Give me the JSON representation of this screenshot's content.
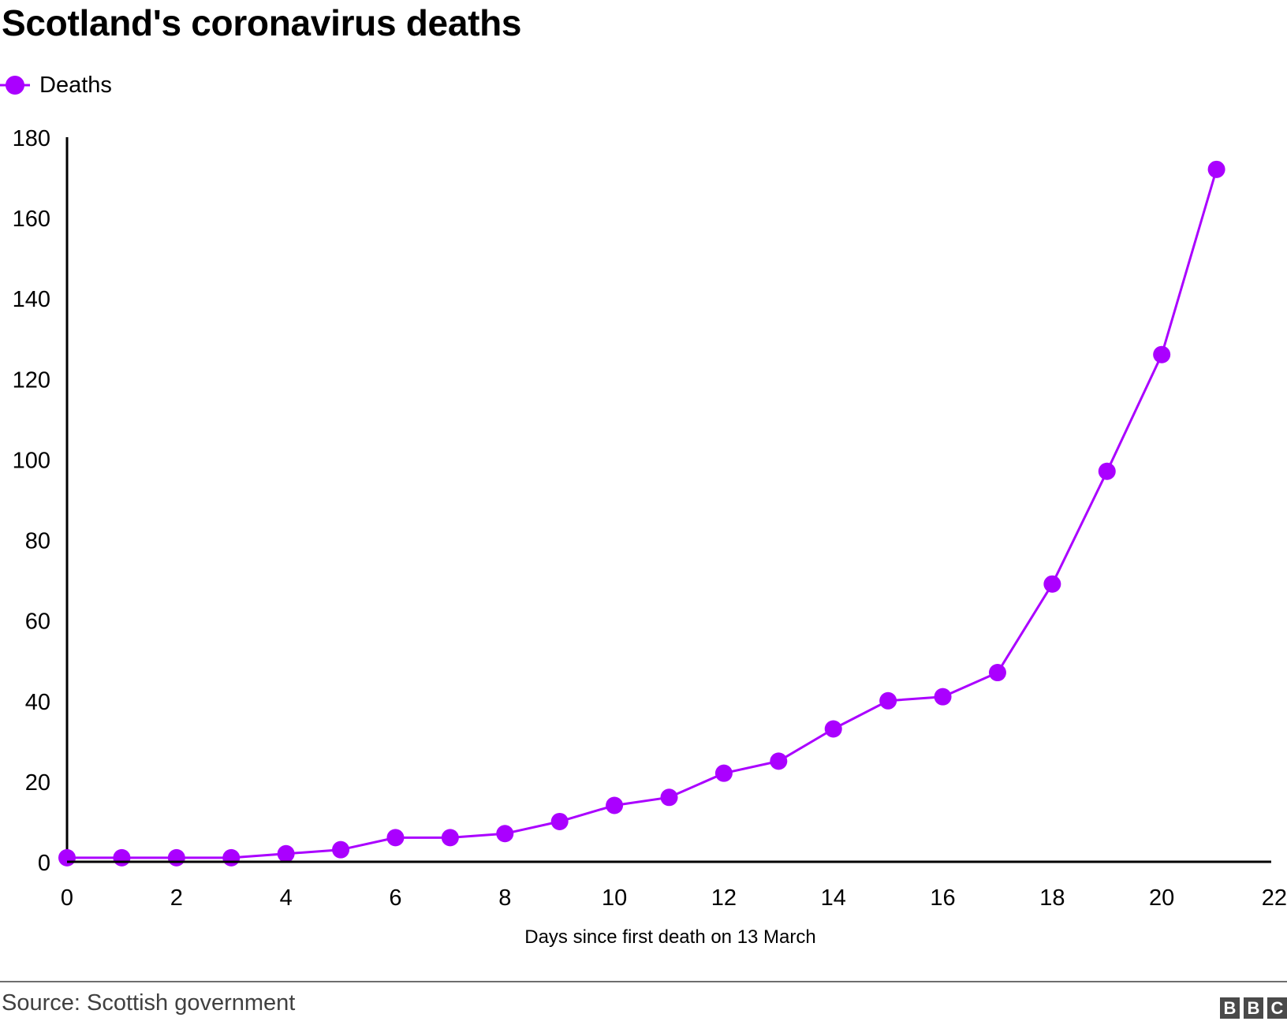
{
  "title": "Scotland's coronavirus deaths",
  "legend": {
    "label": "Deaths",
    "color": "#aa00ff"
  },
  "source": "Source: Scottish government",
  "logo": [
    "B",
    "B",
    "C"
  ],
  "chart_data": {
    "type": "line",
    "title": "Scotland's coronavirus deaths",
    "xlabel": "Days since first death on 13 March",
    "ylabel": "",
    "xlim": [
      0,
      22
    ],
    "ylim": [
      0,
      180
    ],
    "xticks": [
      0,
      2,
      4,
      6,
      8,
      10,
      12,
      14,
      16,
      18,
      20,
      22
    ],
    "yticks": [
      0,
      20,
      40,
      60,
      80,
      100,
      120,
      140,
      160,
      180
    ],
    "grid": false,
    "legend_position": "top-left",
    "series": [
      {
        "name": "Deaths",
        "color": "#aa00ff",
        "x": [
          0,
          1,
          2,
          3,
          4,
          5,
          6,
          7,
          8,
          9,
          10,
          11,
          12,
          13,
          14,
          15,
          16,
          17,
          18,
          19,
          20,
          21
        ],
        "y": [
          1,
          1,
          1,
          1,
          2,
          3,
          6,
          6,
          7,
          10,
          14,
          16,
          22,
          25,
          33,
          40,
          41,
          47,
          69,
          97,
          126,
          172
        ]
      }
    ]
  }
}
